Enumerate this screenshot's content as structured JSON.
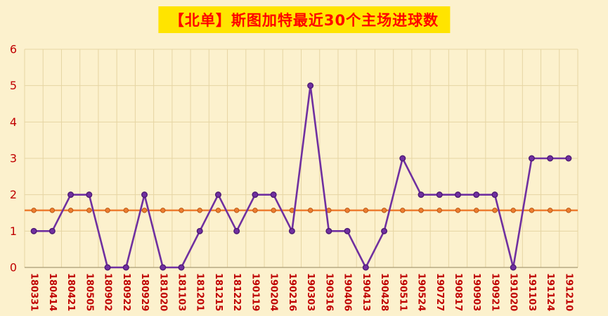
{
  "title": "【北单】斯图加特最近30个主场进球数",
  "chart_data": {
    "type": "line",
    "title": "【北单】斯图加特最近30个主场进球数",
    "categories": [
      "180331",
      "180414",
      "180421",
      "180505",
      "180902",
      "180922",
      "180929",
      "181020",
      "181103",
      "181201",
      "181215",
      "181222",
      "190119",
      "190204",
      "190216",
      "190303",
      "190316",
      "190406",
      "190413",
      "190428",
      "190511",
      "190524",
      "190727",
      "190817",
      "190903",
      "190921",
      "191020",
      "191103",
      "191124",
      "191210"
    ],
    "values": [
      1,
      1,
      2,
      2,
      0,
      0,
      2,
      0,
      0,
      1,
      2,
      1,
      2,
      2,
      1,
      5,
      1,
      1,
      0,
      1,
      3,
      2,
      2,
      2,
      2,
      2,
      0,
      3,
      3,
      3
    ],
    "average_line_value": 1.57,
    "ylim": [
      0,
      6
    ],
    "yticks": [
      0,
      1,
      2,
      3,
      4,
      5,
      6
    ],
    "grid": true,
    "xlabel": "",
    "ylabel": "",
    "colors": {
      "background": "#FCF1CD",
      "grid": "#E6D5A3",
      "axis": "#A89B74",
      "line": "#7030A0",
      "line_marker_stroke": "#4E1A75",
      "average": "#ED7D31",
      "average_marker_stroke": "#BC5A14",
      "tick_labels": "#C00000",
      "title_text": "#FF0000",
      "title_background": "#FFE400"
    }
  }
}
